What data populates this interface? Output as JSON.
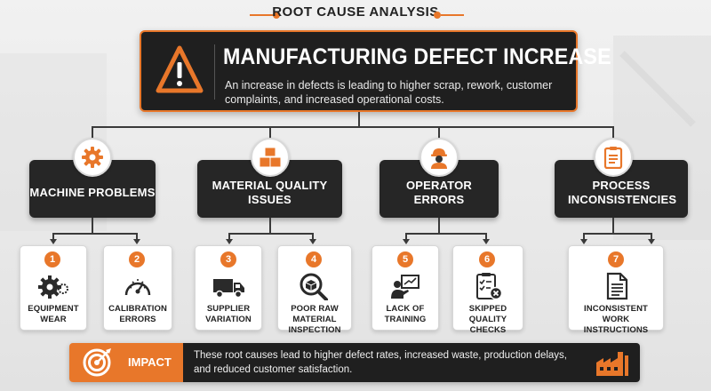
{
  "header": {
    "title": "ROOT CAUSE ANALYSIS"
  },
  "problem": {
    "title": "MANUFACTURING DEFECT INCREASE",
    "description": "An increase in defects is leading to higher scrap, rework, customer complaints, and increased operational costs.",
    "icon": "warning-icon"
  },
  "categories": [
    {
      "label": "MACHINE PROBLEMS",
      "icon": "gear-icon"
    },
    {
      "label": "MATERIAL QUALITY ISSUES",
      "icon": "boxes-icon"
    },
    {
      "label": "OPERATOR ERRORS",
      "icon": "worker-icon"
    },
    {
      "label": "PROCESS INCONSISTENCIES",
      "icon": "checklist-icon"
    }
  ],
  "causes": [
    {
      "number": "1",
      "label": "EQUIPMENT WEAR",
      "icon": "gears-icon"
    },
    {
      "number": "2",
      "label": "CALIBRATION ERRORS",
      "icon": "gauge-icon"
    },
    {
      "number": "3",
      "label": "SUPPLIER VARIATION",
      "icon": "truck-icon"
    },
    {
      "number": "4",
      "label": "POOR RAW MATERIAL INSPECTION",
      "icon": "magnify-box-icon"
    },
    {
      "number": "5",
      "label": "LACK OF TRAINING",
      "icon": "presenter-icon"
    },
    {
      "number": "6",
      "label": "SKIPPED QUALITY CHECKS",
      "icon": "clipboard-x-icon"
    },
    {
      "number": "7",
      "label": "INCONSISTENT WORK INSTRUCTIONS",
      "icon": "document-icon"
    }
  ],
  "impact": {
    "label": "IMPACT",
    "text": "These root causes lead to higher defect rates, increased waste, production delays, and reduced customer satisfaction.",
    "icon": "target-icon",
    "right_icon": "factory-icon"
  },
  "colors": {
    "accent": "#e8772a",
    "dark": "#1f1f1f",
    "background": "#ececec"
  }
}
